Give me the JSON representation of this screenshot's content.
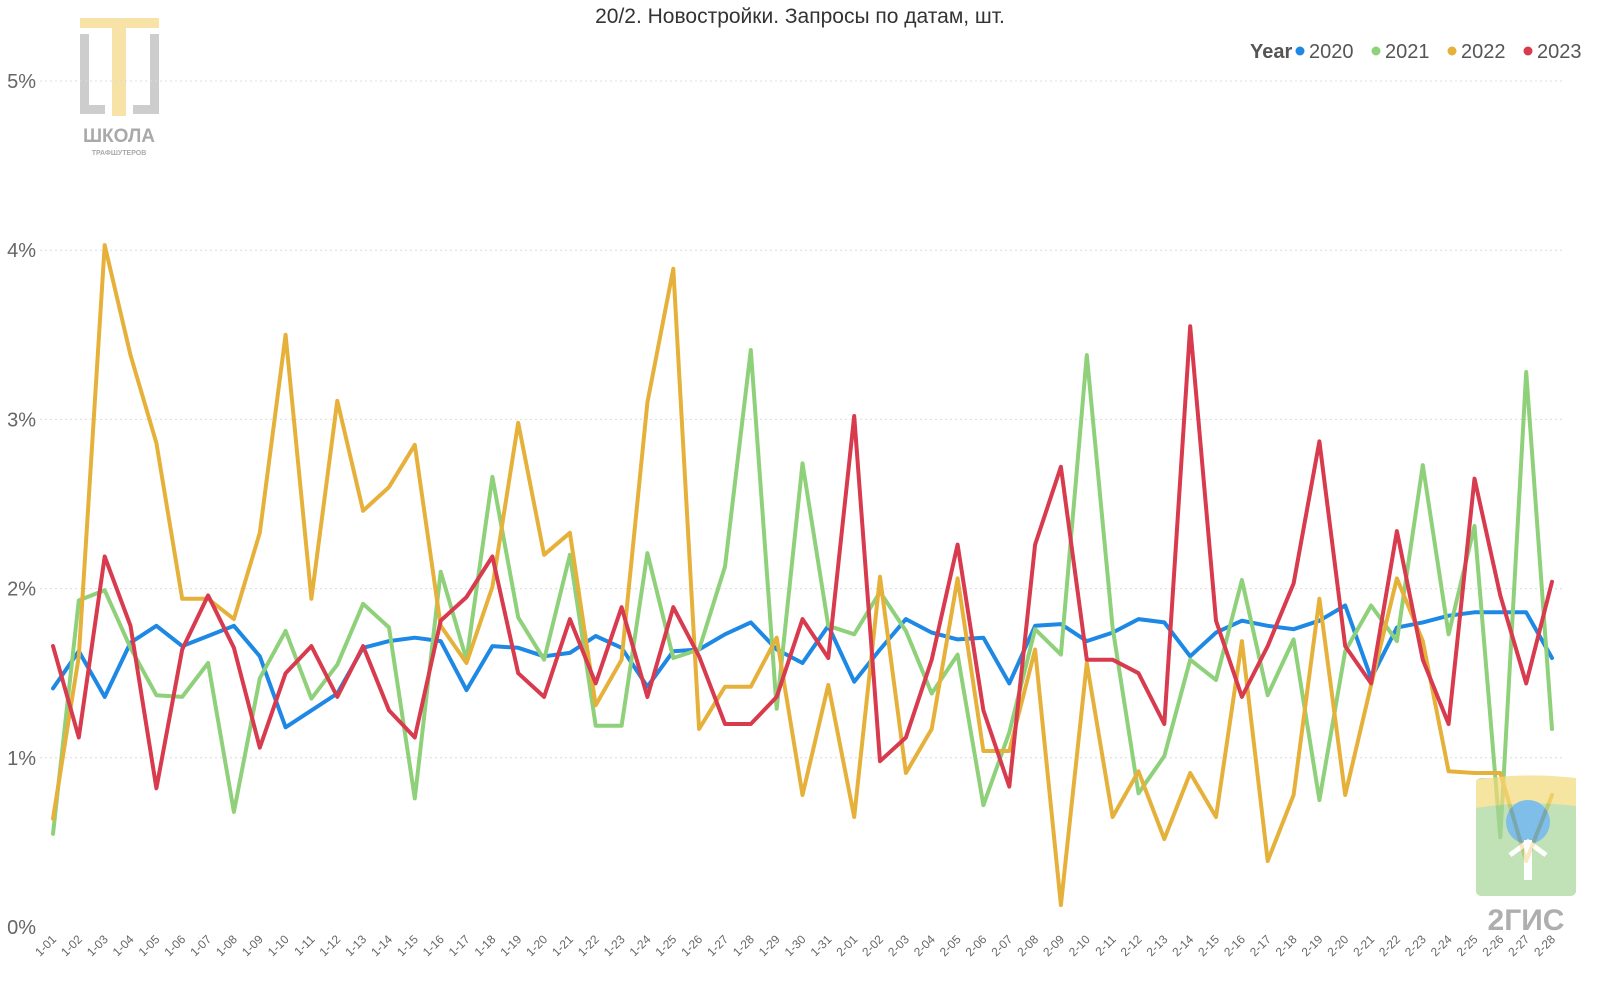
{
  "chart_data": {
    "type": "line",
    "title": "20/2. Новостройки. Запросы по датам, шт.",
    "xlabel": "",
    "ylabel": "",
    "ylim": [
      0,
      5
    ],
    "yticks": [
      "0%",
      "1%",
      "2%",
      "3%",
      "4%",
      "5%"
    ],
    "grid": true,
    "legend": {
      "title": "Year",
      "position": "top-right"
    },
    "categories": [
      "1-01",
      "1-02",
      "1-03",
      "1-04",
      "1-05",
      "1-06",
      "1-07",
      "1-08",
      "1-09",
      "1-10",
      "1-11",
      "1-12",
      "1-13",
      "1-14",
      "1-15",
      "1-16",
      "1-17",
      "1-18",
      "1-19",
      "1-20",
      "1-21",
      "1-22",
      "1-23",
      "1-24",
      "1-25",
      "1-26",
      "1-27",
      "1-28",
      "1-29",
      "1-30",
      "1-31",
      "2-01",
      "2-02",
      "2-03",
      "2-04",
      "2-05",
      "2-06",
      "2-07",
      "2-08",
      "2-09",
      "2-10",
      "2-11",
      "2-12",
      "2-13",
      "2-14",
      "2-15",
      "2-16",
      "2-17",
      "2-18",
      "2-19",
      "2-20",
      "2-21",
      "2-22",
      "2-23",
      "2-24",
      "2-25",
      "2-26",
      "2-27",
      "2-28"
    ],
    "series": [
      {
        "name": "2020",
        "color": "#1e88e5",
        "values": [
          1.41,
          1.63,
          1.36,
          1.68,
          1.78,
          1.66,
          1.72,
          1.78,
          1.6,
          1.18,
          1.28,
          1.38,
          1.65,
          1.69,
          1.71,
          1.69,
          1.4,
          1.66,
          1.65,
          1.6,
          1.62,
          1.72,
          1.65,
          1.42,
          1.63,
          1.64,
          1.73,
          1.8,
          1.64,
          1.56,
          1.78,
          1.45,
          1.64,
          1.82,
          1.74,
          1.7,
          1.71,
          1.44,
          1.78,
          1.79,
          1.69,
          1.74,
          1.82,
          1.8,
          1.6,
          1.74,
          1.81,
          1.78,
          1.76,
          1.81,
          1.9,
          1.47,
          1.77,
          1.8,
          1.84,
          1.86,
          1.86,
          1.86,
          1.59
        ]
      },
      {
        "name": "2021",
        "color": "#8fd17a",
        "values": [
          0.55,
          1.93,
          1.99,
          1.65,
          1.37,
          1.36,
          1.56,
          0.68,
          1.47,
          1.75,
          1.35,
          1.55,
          1.91,
          1.77,
          0.76,
          2.1,
          1.58,
          2.66,
          1.83,
          1.58,
          2.2,
          1.19,
          1.19,
          2.21,
          1.59,
          1.64,
          2.13,
          3.41,
          1.29,
          2.74,
          1.78,
          1.73,
          1.98,
          1.75,
          1.38,
          1.61,
          0.72,
          1.15,
          1.76,
          1.61,
          3.38,
          1.77,
          0.79,
          1.01,
          1.58,
          1.46,
          2.05,
          1.37,
          1.7,
          0.75,
          1.63,
          1.9,
          1.69,
          2.73,
          1.73,
          2.37,
          0.53,
          3.28,
          1.17
        ]
      },
      {
        "name": "2022",
        "color": "#e6b13a",
        "values": [
          0.64,
          1.6,
          4.03,
          3.38,
          2.86,
          1.94,
          1.94,
          1.82,
          2.33,
          3.5,
          1.94,
          3.11,
          2.46,
          2.6,
          2.85,
          1.78,
          1.56,
          2.01,
          2.98,
          2.2,
          2.33,
          1.31,
          1.58,
          3.1,
          3.89,
          1.17,
          1.42,
          1.42,
          1.71,
          0.78,
          1.43,
          0.65,
          2.07,
          0.91,
          1.17,
          2.06,
          1.04,
          1.04,
          1.64,
          0.13,
          1.56,
          0.65,
          0.92,
          0.52,
          0.91,
          0.65,
          1.69,
          0.39,
          0.78,
          1.94,
          0.78,
          1.43,
          2.06,
          1.69,
          0.92,
          0.91,
          0.91,
          0.39,
          0.78
        ]
      },
      {
        "name": "2023",
        "color": "#d83a4e",
        "values": [
          1.66,
          1.12,
          2.19,
          1.78,
          0.82,
          1.64,
          1.96,
          1.65,
          1.06,
          1.5,
          1.66,
          1.36,
          1.66,
          1.28,
          1.12,
          1.81,
          1.95,
          2.19,
          1.5,
          1.36,
          1.82,
          1.44,
          1.89,
          1.36,
          1.89,
          1.6,
          1.2,
          1.2,
          1.36,
          1.82,
          1.59,
          3.02,
          0.98,
          1.12,
          1.58,
          2.26,
          1.28,
          0.83,
          2.26,
          2.72,
          1.58,
          1.58,
          1.5,
          1.2,
          3.55,
          1.81,
          1.36,
          1.66,
          2.03,
          2.87,
          1.66,
          1.44,
          2.34,
          1.58,
          1.2,
          2.65,
          1.96,
          1.44,
          2.04
        ]
      }
    ]
  },
  "watermarks": {
    "school_logo": {
      "name": "ШКОЛА",
      "subtitle": "ТРАФШУТЕРОВ"
    },
    "gis_logo": {
      "name": "2ГИС"
    }
  }
}
